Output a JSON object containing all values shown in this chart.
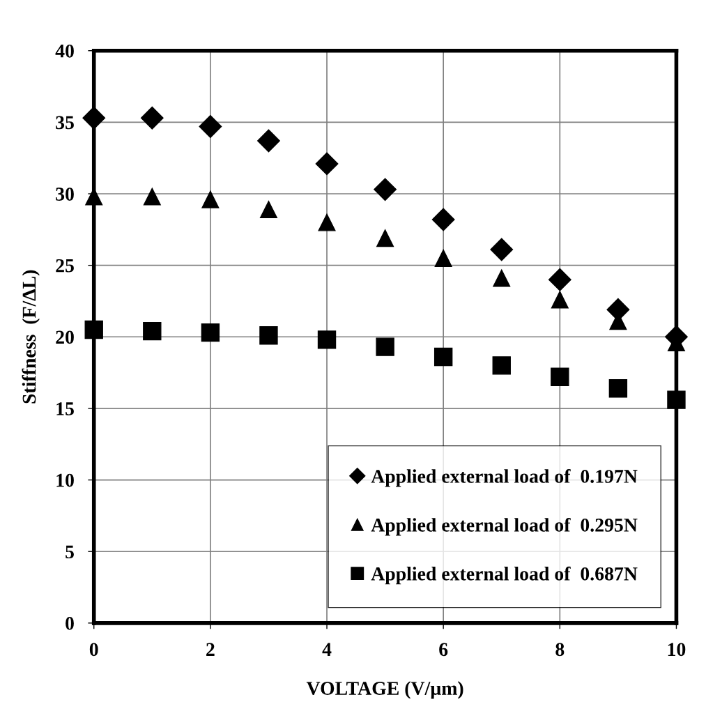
{
  "chart_data": {
    "type": "scatter",
    "xlabel": "VOLTAGE (V/µm)",
    "ylabel": "Stiffness  (F/ΔL)",
    "x": [
      0,
      1,
      2,
      3,
      4,
      5,
      6,
      7,
      8,
      9,
      10
    ],
    "series": [
      {
        "name": "Applied external load of  0.197N",
        "color": "#000000",
        "marker": "diamond",
        "values": [
          35.3,
          35.3,
          34.7,
          33.7,
          32.1,
          30.3,
          28.2,
          26.1,
          24.0,
          21.9,
          20.0
        ]
      },
      {
        "name": "Applied external load of  0.295N",
        "color": "#000000",
        "marker": "triangle",
        "values": [
          29.8,
          29.8,
          29.6,
          28.9,
          28.0,
          26.9,
          25.5,
          24.1,
          22.6,
          21.1,
          19.6
        ]
      },
      {
        "name": "Applied external load of  0.687N",
        "color": "#000000",
        "marker": "square",
        "values": [
          20.5,
          20.4,
          20.3,
          20.1,
          19.8,
          19.3,
          18.6,
          18.0,
          17.2,
          16.4,
          15.6
        ]
      }
    ],
    "xlim": [
      0,
      10
    ],
    "xticks": [
      0,
      2,
      4,
      6,
      8,
      10
    ],
    "ylim": [
      0,
      40
    ],
    "yticks": [
      0,
      5,
      10,
      15,
      20,
      25,
      30,
      35,
      40
    ],
    "grid": true,
    "legend": "bottom right"
  }
}
